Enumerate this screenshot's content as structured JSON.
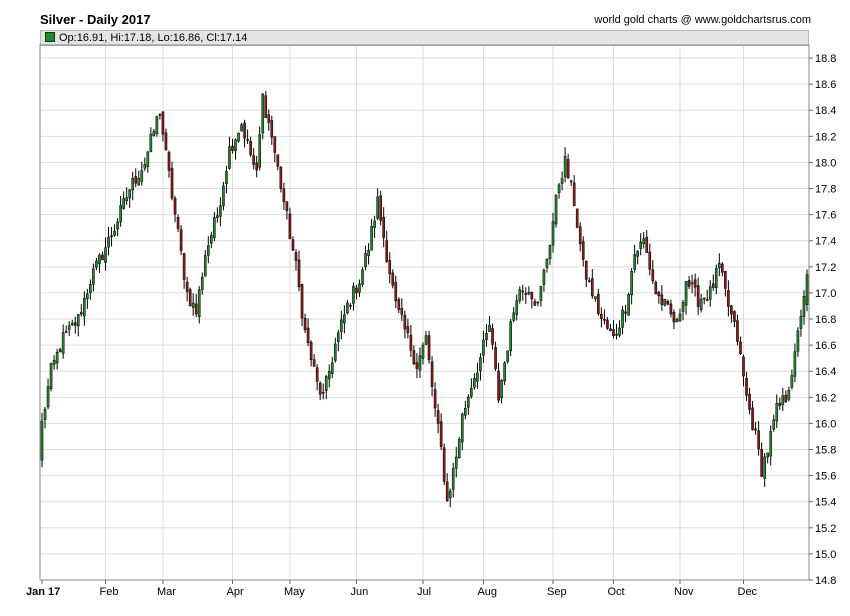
{
  "header": {
    "title": "Silver - Daily 2017",
    "credit": "world gold charts @ www.goldchartsrus.com",
    "ohlc_text": "Op:16.91, Hi:17.18, Lo:16.86, Cl:17.14"
  },
  "colors": {
    "up": "#22882a",
    "down": "#8b1a1a",
    "wick": "#000000",
    "grid": "#dddddd",
    "frame": "#888888"
  },
  "chart_data": {
    "type": "candlestick",
    "title": "Silver - Daily 2017",
    "xlabel": "",
    "ylabel": "",
    "ylim": [
      14.8,
      18.9
    ],
    "yticks": [
      14.8,
      15.0,
      15.2,
      15.4,
      15.6,
      15.8,
      16.0,
      16.2,
      16.4,
      16.6,
      16.8,
      17.0,
      17.2,
      17.4,
      17.6,
      17.8,
      18.0,
      18.2,
      18.4,
      18.6,
      18.8
    ],
    "months": [
      "Jan 17",
      "Feb",
      "Mar",
      "Apr",
      "May",
      "Jun",
      "Jul",
      "Aug",
      "Sep",
      "Oct",
      "Nov",
      "Dec"
    ],
    "month_start_day": [
      0,
      21,
      40,
      63,
      82,
      104,
      126,
      146,
      169,
      189,
      211,
      232
    ],
    "last_bar": {
      "open": 16.91,
      "high": 17.18,
      "low": 16.86,
      "close": 17.14
    },
    "key_closes": [
      [
        0,
        16.0
      ],
      [
        3,
        16.4
      ],
      [
        7,
        16.65
      ],
      [
        12,
        16.8
      ],
      [
        16,
        17.1
      ],
      [
        20,
        17.3
      ],
      [
        24,
        17.5
      ],
      [
        29,
        17.8
      ],
      [
        34,
        18.0
      ],
      [
        39,
        18.4
      ],
      [
        41,
        18.05
      ],
      [
        44,
        17.6
      ],
      [
        48,
        17.0
      ],
      [
        51,
        16.85
      ],
      [
        54,
        17.3
      ],
      [
        58,
        17.6
      ],
      [
        62,
        18.1
      ],
      [
        66,
        18.3
      ],
      [
        71,
        17.9
      ],
      [
        73,
        18.5
      ],
      [
        76,
        18.2
      ],
      [
        80,
        17.7
      ],
      [
        84,
        17.2
      ],
      [
        87,
        16.7
      ],
      [
        91,
        16.3
      ],
      [
        93,
        16.2
      ],
      [
        97,
        16.6
      ],
      [
        101,
        16.9
      ],
      [
        105,
        17.1
      ],
      [
        108,
        17.35
      ],
      [
        111,
        17.7
      ],
      [
        114,
        17.3
      ],
      [
        117,
        16.9
      ],
      [
        121,
        16.65
      ],
      [
        124,
        16.45
      ],
      [
        127,
        16.65
      ],
      [
        130,
        16.1
      ],
      [
        132,
        15.8
      ],
      [
        134,
        15.4
      ],
      [
        137,
        15.75
      ],
      [
        139,
        16.05
      ],
      [
        142,
        16.3
      ],
      [
        145,
        16.5
      ],
      [
        148,
        16.75
      ],
      [
        151,
        16.2
      ],
      [
        154,
        16.6
      ],
      [
        157,
        17.0
      ],
      [
        161,
        17.05
      ],
      [
        164,
        16.9
      ],
      [
        168,
        17.4
      ],
      [
        171,
        17.85
      ],
      [
        173,
        18.0
      ],
      [
        176,
        17.7
      ],
      [
        179,
        17.2
      ],
      [
        182,
        17.0
      ],
      [
        185,
        16.8
      ],
      [
        189,
        16.65
      ],
      [
        193,
        16.9
      ],
      [
        196,
        17.3
      ],
      [
        199,
        17.4
      ],
      [
        203,
        17.0
      ],
      [
        206,
        16.9
      ],
      [
        210,
        16.75
      ],
      [
        213,
        17.1
      ],
      [
        217,
        16.95
      ],
      [
        221,
        17.0
      ],
      [
        224,
        17.2
      ],
      [
        227,
        16.9
      ],
      [
        230,
        16.65
      ],
      [
        233,
        16.2
      ],
      [
        236,
        15.9
      ],
      [
        238,
        15.65
      ],
      [
        240,
        15.8
      ],
      [
        243,
        16.1
      ],
      [
        246,
        16.2
      ],
      [
        249,
        16.5
      ],
      [
        251,
        16.85
      ],
      [
        253,
        17.14
      ]
    ]
  }
}
